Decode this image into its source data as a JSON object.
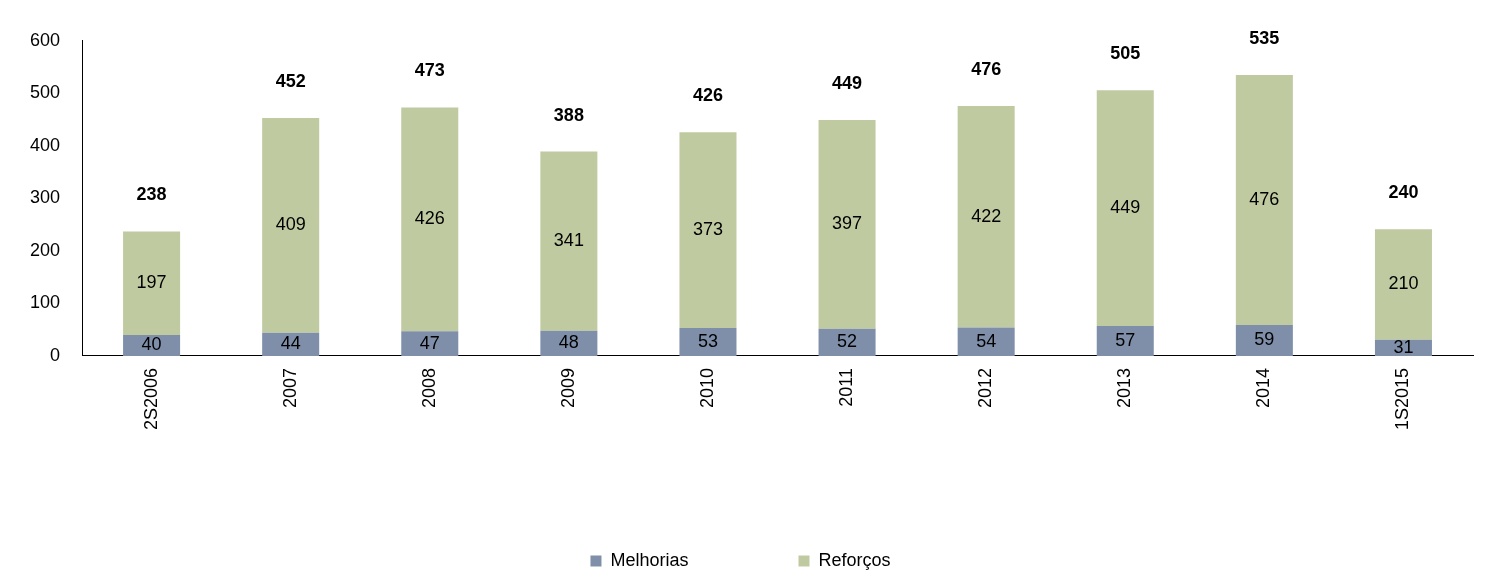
{
  "chart_data": {
    "type": "bar",
    "stacked": true,
    "categories": [
      "2S2006",
      "2007",
      "2008",
      "2009",
      "2010",
      "2011",
      "2012",
      "2013",
      "2014",
      "1S2015"
    ],
    "series": [
      {
        "name": "Melhorias",
        "color": "#7f8faa",
        "values": [
          40,
          44,
          47,
          48,
          53,
          52,
          54,
          57,
          59,
          31
        ]
      },
      {
        "name": "Reforços",
        "color": "#bfcaa1",
        "values": [
          197,
          409,
          426,
          341,
          373,
          397,
          422,
          449,
          476,
          210
        ]
      }
    ],
    "totals": [
      "238",
      "452",
      "473",
      "388",
      "426",
      "449",
      "476",
      "505",
      "535",
      "240"
    ],
    "data_labels": true,
    "ylim": [
      0,
      600
    ],
    "yticks": [
      0,
      100,
      200,
      300,
      400,
      500,
      600
    ],
    "grid": false,
    "legend": "bottom"
  }
}
